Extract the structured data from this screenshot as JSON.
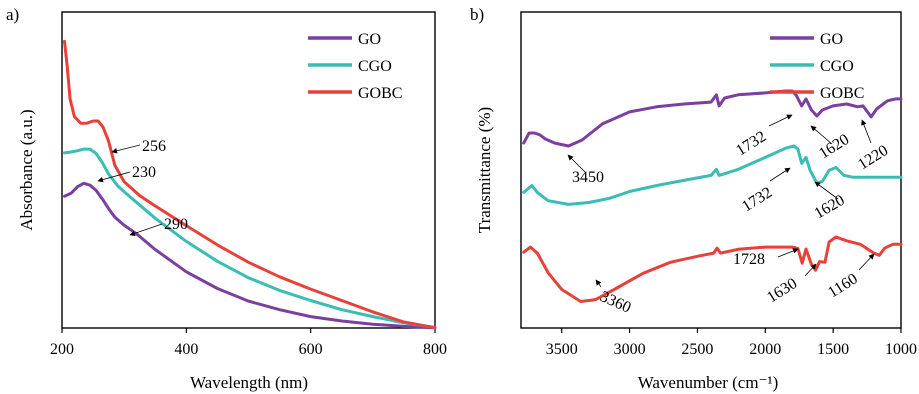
{
  "chart_data": [
    {
      "panel_label": "a)",
      "type": "line",
      "xlabel": "Wavelength (nm)",
      "ylabel": "Absorbance (a.u.)",
      "xlim": [
        200,
        800
      ],
      "ylim": [
        0,
        1.0
      ],
      "xticks": [
        200,
        400,
        600,
        800
      ],
      "yticks_shown": false,
      "grid": false,
      "legend": "top-right",
      "series": [
        {
          "name": "GO",
          "color": "#7b3fa0",
          "points": [
            [
              204,
              0.417
            ],
            [
              215,
              0.427
            ],
            [
              225,
              0.447
            ],
            [
              235,
              0.458
            ],
            [
              245,
              0.452
            ],
            [
              255,
              0.435
            ],
            [
              265,
              0.408
            ],
            [
              275,
              0.378
            ],
            [
              285,
              0.351
            ],
            [
              300,
              0.325
            ],
            [
              320,
              0.298
            ],
            [
              350,
              0.248
            ],
            [
              400,
              0.178
            ],
            [
              450,
              0.125
            ],
            [
              500,
              0.085
            ],
            [
              550,
              0.058
            ],
            [
              600,
              0.036
            ],
            [
              650,
              0.022
            ],
            [
              700,
              0.012
            ],
            [
              750,
              0.005
            ],
            [
              800,
              0.001
            ]
          ]
        },
        {
          "name": "CGO",
          "color": "#3bbcb5",
          "points": [
            [
              204,
              0.554
            ],
            [
              215,
              0.557
            ],
            [
              225,
              0.561
            ],
            [
              235,
              0.566
            ],
            [
              245,
              0.566
            ],
            [
              255,
              0.552
            ],
            [
              265,
              0.523
            ],
            [
              275,
              0.487
            ],
            [
              290,
              0.449
            ],
            [
              310,
              0.414
            ],
            [
              350,
              0.347
            ],
            [
              400,
              0.274
            ],
            [
              450,
              0.211
            ],
            [
              500,
              0.159
            ],
            [
              550,
              0.119
            ],
            [
              600,
              0.087
            ],
            [
              650,
              0.058
            ],
            [
              700,
              0.036
            ],
            [
              750,
              0.016
            ],
            [
              800,
              0.002
            ]
          ]
        },
        {
          "name": "GOBC",
          "color": "#e8403a",
          "points": [
            [
              204,
              0.907
            ],
            [
              208,
              0.835
            ],
            [
              213,
              0.724
            ],
            [
              220,
              0.669
            ],
            [
              230,
              0.648
            ],
            [
              240,
              0.648
            ],
            [
              250,
              0.655
            ],
            [
              258,
              0.655
            ],
            [
              266,
              0.636
            ],
            [
              275,
              0.591
            ],
            [
              285,
              0.515
            ],
            [
              300,
              0.463
            ],
            [
              325,
              0.419
            ],
            [
              350,
              0.386
            ],
            [
              400,
              0.324
            ],
            [
              450,
              0.263
            ],
            [
              500,
              0.208
            ],
            [
              550,
              0.162
            ],
            [
              600,
              0.123
            ],
            [
              650,
              0.087
            ],
            [
              700,
              0.051
            ],
            [
              750,
              0.019
            ],
            [
              800,
              0.001
            ]
          ]
        }
      ],
      "annotations": [
        {
          "text": "256",
          "x": 262,
          "y": 0.655
        },
        {
          "text": "230",
          "x": 235,
          "y": 0.566
        },
        {
          "text": "290",
          "x": 300,
          "y": 0.325
        }
      ]
    },
    {
      "panel_label": "b)",
      "type": "line",
      "xlabel": "Wavenumber (cm⁻¹)",
      "ylabel": "Transmittance (%)",
      "xlim": [
        3800,
        1000
      ],
      "ylim": [
        0,
        1.0
      ],
      "xticks": [
        3500,
        3000,
        2500,
        2000,
        1500,
        1000
      ],
      "yticks_shown": false,
      "grid": false,
      "legend": "top-right",
      "series": [
        {
          "name": "GO",
          "color": "#7b3fa0",
          "points": [
            [
              3780,
              0.585
            ],
            [
              3740,
              0.617
            ],
            [
              3700,
              0.617
            ],
            [
              3660,
              0.611
            ],
            [
              3620,
              0.598
            ],
            [
              3550,
              0.585
            ],
            [
              3450,
              0.576
            ],
            [
              3350,
              0.595
            ],
            [
              3200,
              0.646
            ],
            [
              3000,
              0.684
            ],
            [
              2800,
              0.7
            ],
            [
              2600,
              0.709
            ],
            [
              2400,
              0.715
            ],
            [
              2360,
              0.738
            ],
            [
              2340,
              0.703
            ],
            [
              2300,
              0.728
            ],
            [
              2200,
              0.738
            ],
            [
              2000,
              0.744
            ],
            [
              1850,
              0.75
            ],
            [
              1800,
              0.75
            ],
            [
              1770,
              0.735
            ],
            [
              1732,
              0.703
            ],
            [
              1700,
              0.725
            ],
            [
              1660,
              0.69
            ],
            [
              1620,
              0.671
            ],
            [
              1580,
              0.69
            ],
            [
              1500,
              0.703
            ],
            [
              1400,
              0.709
            ],
            [
              1320,
              0.7
            ],
            [
              1280,
              0.703
            ],
            [
              1220,
              0.668
            ],
            [
              1180,
              0.693
            ],
            [
              1100,
              0.719
            ],
            [
              1040,
              0.725
            ],
            [
              1000,
              0.725
            ]
          ]
        },
        {
          "name": "CGO",
          "color": "#3bbcb5",
          "points": [
            [
              3780,
              0.429
            ],
            [
              3720,
              0.451
            ],
            [
              3680,
              0.429
            ],
            [
              3600,
              0.403
            ],
            [
              3450,
              0.391
            ],
            [
              3300,
              0.397
            ],
            [
              3150,
              0.41
            ],
            [
              3000,
              0.432
            ],
            [
              2800,
              0.451
            ],
            [
              2600,
              0.467
            ],
            [
              2400,
              0.483
            ],
            [
              2360,
              0.502
            ],
            [
              2340,
              0.483
            ],
            [
              2200,
              0.502
            ],
            [
              2000,
              0.54
            ],
            [
              1850,
              0.569
            ],
            [
              1790,
              0.576
            ],
            [
              1760,
              0.566
            ],
            [
              1732,
              0.521
            ],
            [
              1700,
              0.54
            ],
            [
              1670,
              0.499
            ],
            [
              1620,
              0.458
            ],
            [
              1580,
              0.464
            ],
            [
              1530,
              0.499
            ],
            [
              1480,
              0.508
            ],
            [
              1420,
              0.483
            ],
            [
              1350,
              0.477
            ],
            [
              1200,
              0.477
            ],
            [
              1000,
              0.477
            ]
          ]
        },
        {
          "name": "GOBC",
          "color": "#e8403a",
          "points": [
            [
              3780,
              0.24
            ],
            [
              3730,
              0.256
            ],
            [
              3680,
              0.237
            ],
            [
              3600,
              0.175
            ],
            [
              3500,
              0.122
            ],
            [
              3360,
              0.084
            ],
            [
              3250,
              0.09
            ],
            [
              3100,
              0.125
            ],
            [
              2900,
              0.173
            ],
            [
              2700,
              0.208
            ],
            [
              2500,
              0.227
            ],
            [
              2380,
              0.237
            ],
            [
              2355,
              0.253
            ],
            [
              2330,
              0.237
            ],
            [
              2200,
              0.249
            ],
            [
              2000,
              0.256
            ],
            [
              1800,
              0.256
            ],
            [
              1760,
              0.252
            ],
            [
              1728,
              0.205
            ],
            [
              1700,
              0.25
            ],
            [
              1660,
              0.202
            ],
            [
              1630,
              0.183
            ],
            [
              1600,
              0.21
            ],
            [
              1560,
              0.208
            ],
            [
              1530,
              0.272
            ],
            [
              1480,
              0.288
            ],
            [
              1400,
              0.276
            ],
            [
              1300,
              0.265
            ],
            [
              1200,
              0.237
            ],
            [
              1160,
              0.23
            ],
            [
              1120,
              0.253
            ],
            [
              1060,
              0.265
            ],
            [
              1000,
              0.265
            ]
          ]
        }
      ],
      "annotations": [
        {
          "text": "3450",
          "x": 3450,
          "y": 0.576
        },
        {
          "text": "1732",
          "x": 1732,
          "y": 0.703
        },
        {
          "text": "1620",
          "x": 1620,
          "y": 0.671
        },
        {
          "text": "1220",
          "x": 1220,
          "y": 0.668
        },
        {
          "text": "1732",
          "x": 1732,
          "y": 0.521
        },
        {
          "text": "1620",
          "x": 1620,
          "y": 0.458
        },
        {
          "text": "3360",
          "x": 3360,
          "y": 0.084
        },
        {
          "text": "1728",
          "x": 1728,
          "y": 0.205
        },
        {
          "text": "1630",
          "x": 1630,
          "y": 0.183
        },
        {
          "text": "1160",
          "x": 1160,
          "y": 0.23
        }
      ]
    }
  ]
}
